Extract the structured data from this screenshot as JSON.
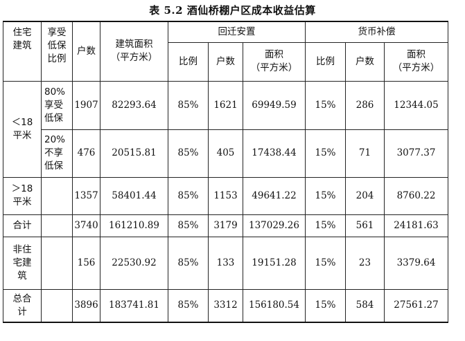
{
  "title": "表 5.2  酒仙桥棚户区成本收益估算",
  "headers": {
    "residential": "住宅\n建筑",
    "subsidy": "享受\n低保\n比例",
    "households": "户数",
    "area": "建筑面积\n（平方米）",
    "relocation": "回迁安置",
    "compensation": "货币补偿",
    "ratio": "比例",
    "hh": "户数",
    "sub_area": "面积\n（平方米）"
  },
  "rows": [
    {
      "cat": "＜18\n平米",
      "sub": "80%\n享受\n低保",
      "hh": "1907",
      "area": "82293.64",
      "r1": "85%",
      "h1": "1621",
      "a1": "69949.59",
      "r2": "15%",
      "h2": "286",
      "a2": "12344.05"
    },
    {
      "cat": "",
      "sub": "20%\n不享\n低保",
      "hh": "476",
      "area": "20515.81",
      "r1": "85%",
      "h1": "405",
      "a1": "17438.44",
      "r2": "15%",
      "h2": "71",
      "a2": "3077.37"
    },
    {
      "cat": "＞18\n平米",
      "sub": "",
      "hh": "1357",
      "area": "58401.44",
      "r1": "85%",
      "h1": "1153",
      "a1": "49641.22",
      "r2": "15%",
      "h2": "204",
      "a2": "8760.22"
    },
    {
      "cat": "合计",
      "sub": "",
      "hh": "3740",
      "area": "161210.89",
      "r1": "85%",
      "h1": "3179",
      "a1": "137029.26",
      "r2": "15%",
      "h2": "561",
      "a2": "24181.63"
    },
    {
      "cat": "非住\n宅建\n筑",
      "sub": "",
      "hh": "156",
      "area": "22530.92",
      "r1": "85%",
      "h1": "133",
      "a1": "19151.28",
      "r2": "15%",
      "h2": "23",
      "a2": "3379.64"
    },
    {
      "cat": "总合\n计",
      "sub": "",
      "hh": "3896",
      "area": "183741.81",
      "r1": "85%",
      "h1": "3312",
      "a1": "156180.54",
      "r2": "15%",
      "h2": "584",
      "a2": "27561.27"
    }
  ]
}
